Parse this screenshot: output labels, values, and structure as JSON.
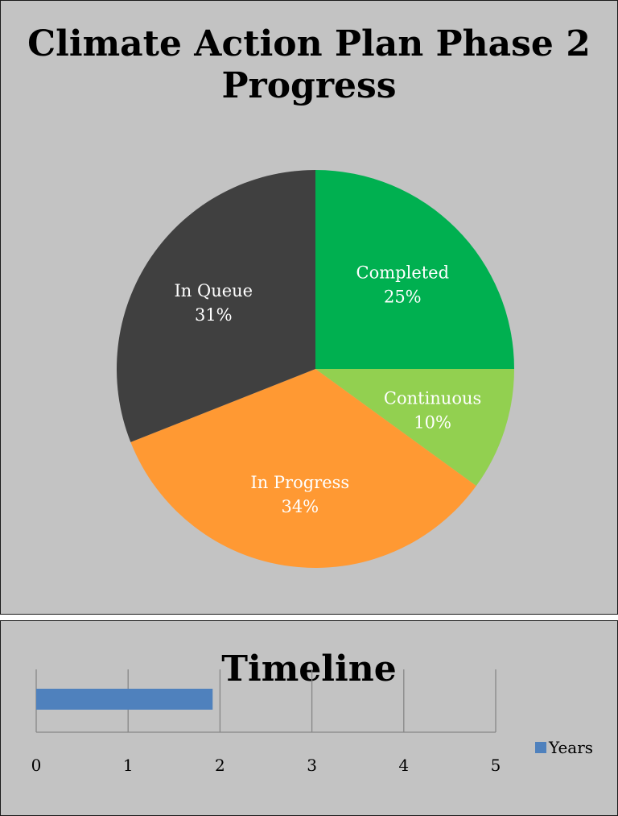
{
  "chart_data": [
    {
      "type": "pie",
      "title": "Climate Action Plan Phase 2 Progress",
      "slices": [
        {
          "label": "Completed",
          "value": 25,
          "percent_label": "25%",
          "color": "#00b050"
        },
        {
          "label": "Continuous",
          "value": 10,
          "percent_label": "10%",
          "color": "#92d050"
        },
        {
          "label": "In Progress",
          "value": 34,
          "percent_label": "34%",
          "color": "#ff9933"
        },
        {
          "label": "In Queue",
          "value": 31,
          "percent_label": "31%",
          "color": "#404040"
        }
      ],
      "legend": "none",
      "data_labels": "inside"
    },
    {
      "type": "bar",
      "orientation": "horizontal",
      "title": "Timeline",
      "categories": [
        ""
      ],
      "series": [
        {
          "name": "Years",
          "values": [
            1.92
          ],
          "color": "#4f81bd"
        }
      ],
      "xlim": [
        0,
        5
      ],
      "xticks": [
        "0",
        "1",
        "2",
        "3",
        "4",
        "5"
      ],
      "grid": true,
      "legend": "right"
    }
  ]
}
